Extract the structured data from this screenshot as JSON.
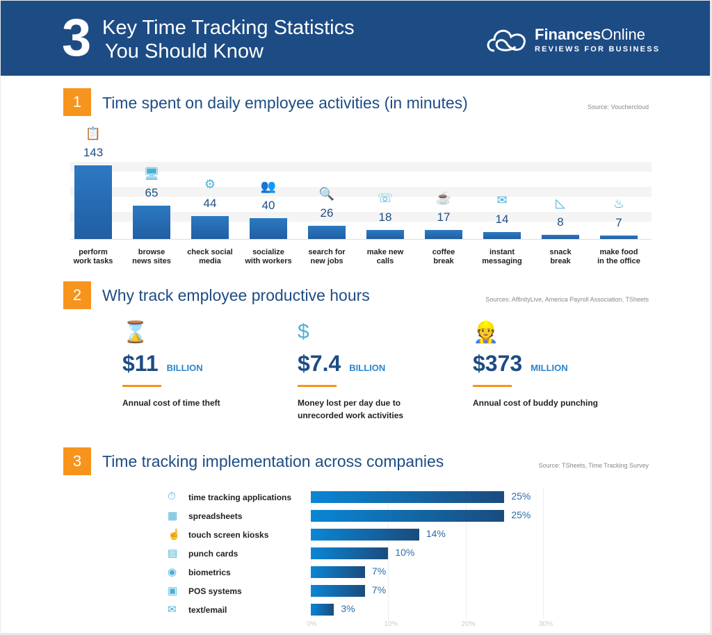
{
  "header": {
    "number": "3",
    "title_line1": "Key Time Tracking Statistics",
    "title_line2": "You Should Know",
    "logo_brand_bold": "Finances",
    "logo_brand_rest": "Online",
    "logo_tagline": "REVIEWS FOR BUSINESS"
  },
  "sections": [
    {
      "number": "1",
      "title": "Time spent on daily employee activities (in minutes)",
      "source": "Source: Vouchercloud"
    },
    {
      "number": "2",
      "title": "Why track employee productive hours",
      "source": "Sources: AffinityLive, America Payroll Association, TSheets"
    },
    {
      "number": "3",
      "title": "Time tracking implementation across companies",
      "source": "Source: TSheets, Time Tracking Survey"
    }
  ],
  "chart_data": [
    {
      "type": "bar",
      "title": "Time spent on daily employee activities (in minutes)",
      "categories": [
        "perform work tasks",
        "browse news sites",
        "check social media",
        "socialize with workers",
        "search for new jobs",
        "make new calls",
        "coffee break",
        "instant messaging",
        "snack break",
        "make food in the office"
      ],
      "label_lines": [
        [
          "perform",
          "work tasks"
        ],
        [
          "browse",
          "news sites"
        ],
        [
          "check social",
          "media"
        ],
        [
          "socialize",
          "with workers"
        ],
        [
          "search for",
          "new jobs"
        ],
        [
          "make new",
          "calls"
        ],
        [
          "coffee",
          "break"
        ],
        [
          "instant",
          "messaging"
        ],
        [
          "snack",
          "break"
        ],
        [
          "make food",
          "in the office"
        ]
      ],
      "values": [
        143,
        65,
        44,
        40,
        26,
        18,
        17,
        14,
        8,
        7
      ],
      "icons": [
        "clipboard-icon",
        "monitor-icon",
        "social-network-icon",
        "people-chat-icon",
        "job-search-icon",
        "phone-icon",
        "coffee-icon",
        "envelope-icon",
        "sandwich-icon",
        "chef-hat-icon"
      ],
      "bar_color": "#2566ad"
    },
    {
      "type": "bar",
      "orientation": "horizontal",
      "title": "Time tracking implementation across companies",
      "categories": [
        "time tracking applications",
        "spreadsheets",
        "touch screen kiosks",
        "punch cards",
        "biometrics",
        "POS systems",
        "text/email"
      ],
      "values": [
        25,
        25,
        14,
        10,
        7,
        7,
        3
      ],
      "value_labels": [
        "25%",
        "25%",
        "14%",
        "10%",
        "7%",
        "7%",
        "3%"
      ],
      "icons": [
        "stopwatch-icon",
        "spreadsheet-icon",
        "touch-screen-icon",
        "punch-card-icon",
        "eye-icon",
        "cash-register-icon",
        "email-icon"
      ],
      "xlim": [
        0,
        30
      ],
      "xticks": [
        "0%",
        "10%",
        "20%",
        "30%"
      ],
      "grid": true,
      "bar_color_start": "#0a86d4",
      "bar_color_end": "#1b4b7d"
    }
  ],
  "stats": [
    {
      "icon": "hourglass-icon",
      "value": "$11",
      "unit": "BILLION",
      "description": "Annual cost of time theft"
    },
    {
      "icon": "money-flow-icon",
      "value": "$7.4",
      "unit": "BILLION",
      "description": "Money lost per day due to unrecorded work activities"
    },
    {
      "icon": "workers-icon",
      "value": "$373",
      "unit": "MILLION",
      "description": "Annual cost of buddy punching"
    }
  ],
  "colors": {
    "header": "#1d4c85",
    "accent": "#f7941d",
    "icon": "#4bb0d8"
  }
}
